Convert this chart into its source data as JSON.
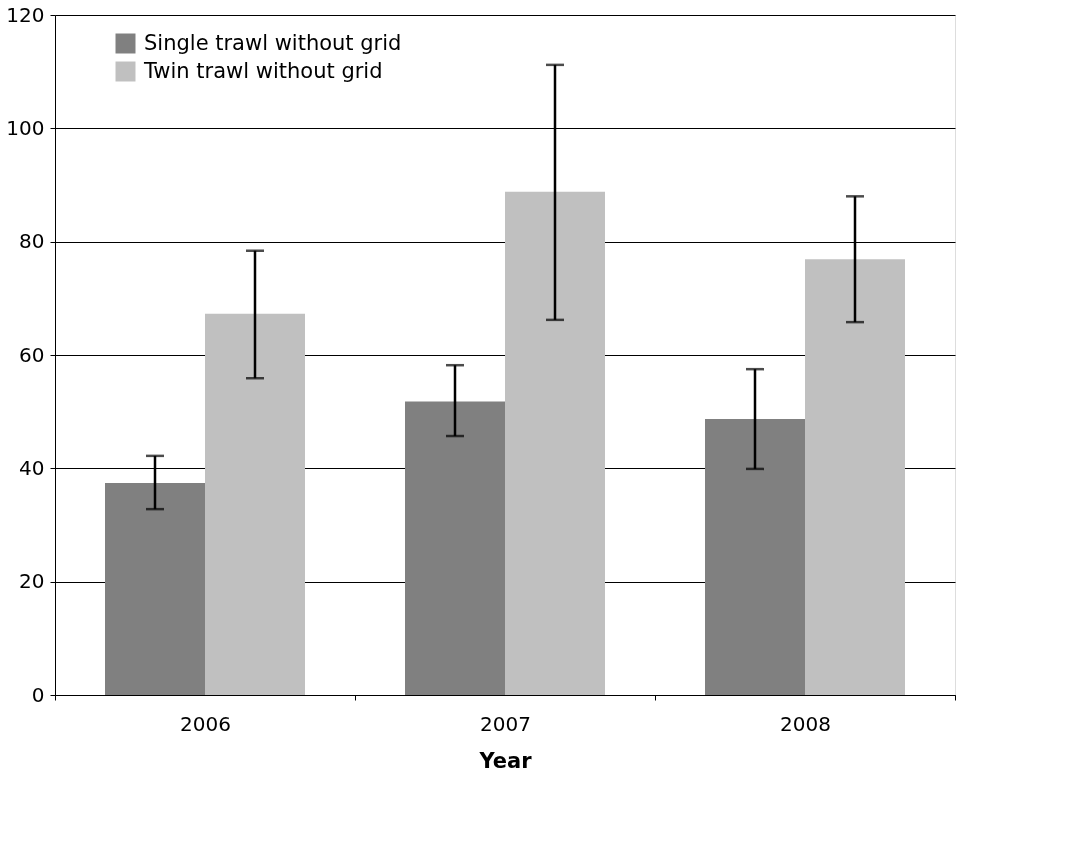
{
  "chart_data": {
    "type": "bar",
    "xlabel": "Year",
    "categories": [
      "2006",
      "2007",
      "2008"
    ],
    "series": [
      {
        "name": "Single trawl without grid",
        "color": "#808080",
        "values": [
          37.4,
          51.8,
          48.7
        ],
        "errors": [
          [
            32.8,
            42.2
          ],
          [
            45.7,
            58.2
          ],
          [
            39.9,
            57.5
          ]
        ]
      },
      {
        "name": "Twin trawl without grid",
        "color": "#c0c0c0",
        "values": [
          67.3,
          88.8,
          76.9
        ],
        "errors": [
          [
            55.9,
            78.4
          ],
          [
            66.2,
            111.2
          ],
          [
            65.8,
            88.0
          ]
        ]
      }
    ],
    "ylim": [
      0,
      120
    ],
    "yticks": [
      0,
      20,
      40,
      60,
      80,
      100,
      120
    ],
    "grid": "y",
    "legend": "top left"
  }
}
